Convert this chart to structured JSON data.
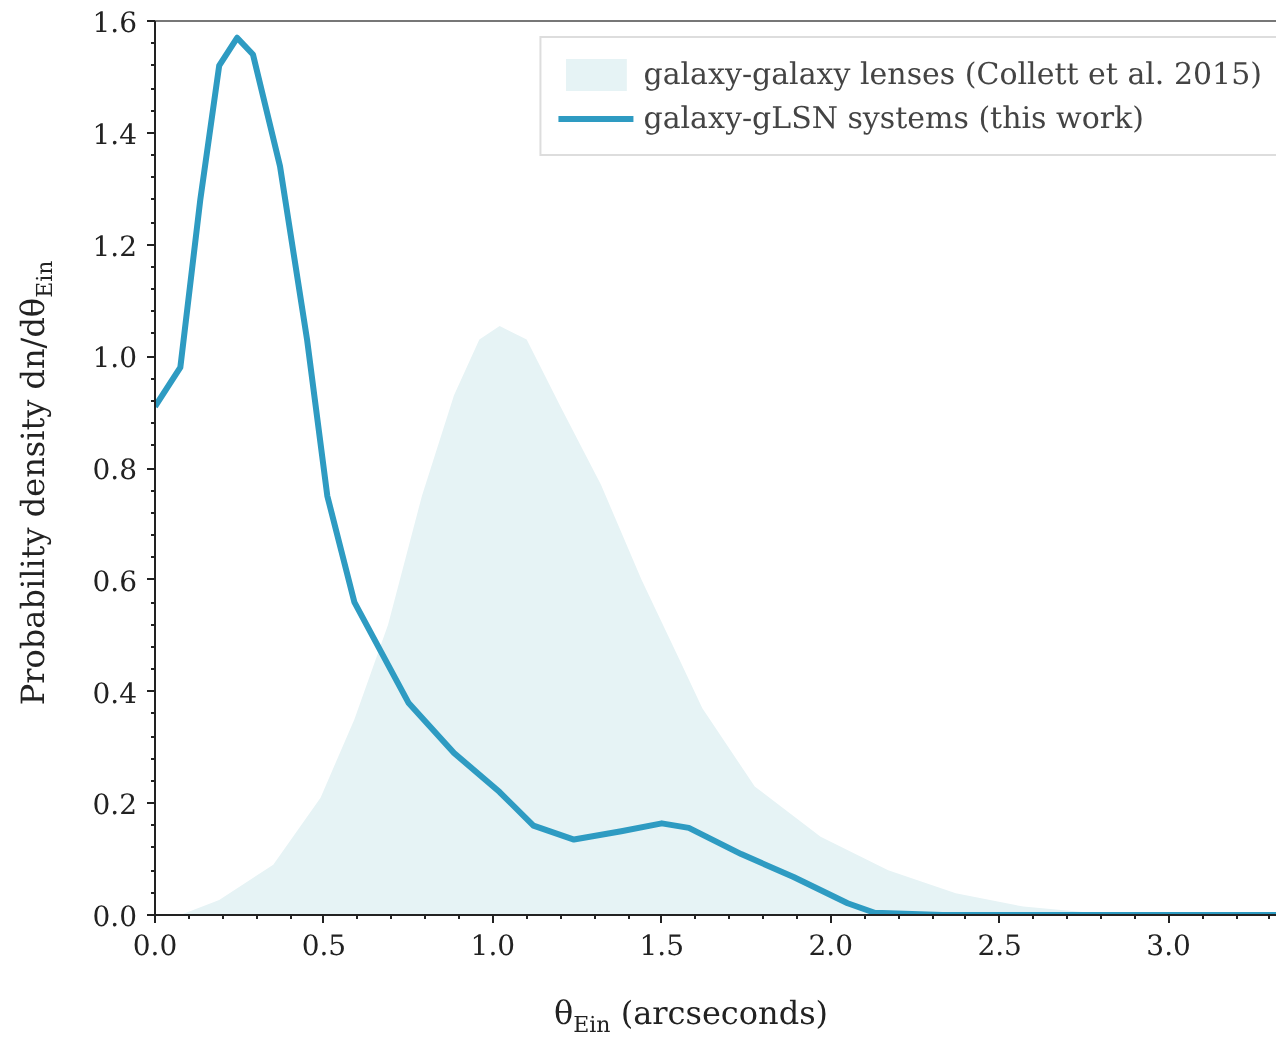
{
  "chart_data": {
    "type": "line",
    "xlabel": "θ$_{Ein}$ (arcseconds)",
    "ylabel": "Probability density dn/dθ$_{Ein}$",
    "series": [
      {
        "name": "galaxy-galaxy lenses (Collett et al. 2015)",
        "type": "area",
        "color": "#e6f3f5",
        "x": [
          0.075,
          0.19,
          0.35,
          0.49,
          0.59,
          0.69,
          0.79,
          0.885,
          0.96,
          1.02,
          1.1,
          1.2,
          1.32,
          1.44,
          1.55,
          1.62,
          1.775,
          1.97,
          2.17,
          2.37,
          2.57,
          2.77,
          2.96,
          3.38
        ],
        "values": [
          0,
          0.027,
          0.09,
          0.21,
          0.35,
          0.52,
          0.75,
          0.93,
          1.03,
          1.054,
          1.03,
          0.91,
          0.77,
          0.6,
          0.46,
          0.37,
          0.23,
          0.14,
          0.08,
          0.039,
          0.015,
          0.004,
          0,
          0
        ]
      },
      {
        "name": "galaxy-gLSN systems (this work)",
        "color": "#2e9bc2",
        "x": [
          0,
          0.075,
          0.134,
          0.19,
          0.243,
          0.29,
          0.37,
          0.45,
          0.51,
          0.59,
          0.67,
          0.75,
          0.885,
          1.02,
          1.12,
          1.24,
          1.38,
          1.5,
          1.58,
          1.735,
          1.89,
          2.05,
          2.13,
          2.33,
          3.38
        ],
        "values": [
          0.91,
          0.98,
          1.28,
          1.52,
          1.57,
          1.54,
          1.34,
          1.03,
          0.75,
          0.56,
          0.47,
          0.38,
          0.29,
          0.22,
          0.16,
          0.135,
          0.15,
          0.164,
          0.156,
          0.109,
          0.068,
          0.021,
          0.004,
          0,
          0
        ]
      }
    ],
    "xlim": [
      0,
      3.38
    ],
    "ylim": [
      0,
      1.6
    ],
    "xticks": [
      {
        "value": 0,
        "label": "0.0"
      },
      0.5,
      {
        "value": 1,
        "label": "1.0"
      },
      1.5,
      {
        "value": 2,
        "label": "2.0"
      },
      2.5,
      {
        "value": 3,
        "label": "3.0"
      }
    ],
    "yticks": [
      {
        "value": 0,
        "label": "0.0"
      },
      0.2,
      0.4,
      0.6,
      0.8,
      {
        "value": 1,
        "label": "1.0"
      },
      1.2,
      1.4,
      1.6
    ],
    "legend": "top right",
    "grid": false
  }
}
